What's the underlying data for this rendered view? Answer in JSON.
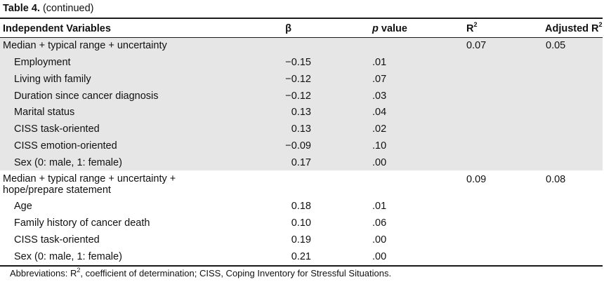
{
  "caption": {
    "label": "Table 4.",
    "text": "(continued)"
  },
  "header": {
    "independent_variables": "Independent Variables",
    "beta": "β",
    "p_value_italic": "p",
    "p_value_rest": " value",
    "r2_base": "R",
    "r2_sup": "2",
    "adjusted_base": "Adjusted R",
    "adjusted_sup": "2"
  },
  "group1": {
    "model": "Median + typical range + uncertainty",
    "r2": "0.07",
    "adjusted_r2": "0.05",
    "rows": [
      {
        "variable": "Employment",
        "beta": "−0.15",
        "p": ".01"
      },
      {
        "variable": "Living with family",
        "beta": "−0.12",
        "p": ".07"
      },
      {
        "variable": "Duration since cancer diagnosis",
        "beta": "−0.12",
        "p": ".03"
      },
      {
        "variable": "Marital status",
        "beta": "0.13",
        "p": ".04"
      },
      {
        "variable": "CISS task-oriented",
        "beta": "0.13",
        "p": ".02"
      },
      {
        "variable": "CISS emotion-oriented",
        "beta": "−0.09",
        "p": ".10"
      },
      {
        "variable": "Sex (0: male, 1: female)",
        "beta": "0.17",
        "p": ".00"
      }
    ]
  },
  "group2": {
    "model_line1": "Median + typical range + uncertainty +",
    "model_line2": "hope/prepare statement",
    "r2": "0.09",
    "adjusted_r2": "0.08",
    "rows": [
      {
        "variable": "Age",
        "beta": "0.18",
        "p": ".01"
      },
      {
        "variable": "Family history of cancer death",
        "beta": "0.10",
        "p": ".06"
      },
      {
        "variable": "CISS task-oriented",
        "beta": "0.19",
        "p": ".00"
      },
      {
        "variable": "Sex (0: male, 1: female)",
        "beta": "0.21",
        "p": ".00"
      }
    ]
  },
  "footnote": {
    "prefix": "Abbreviations: R",
    "sup": "2",
    "rest": ", coefficient of determination; CISS, Coping Inventory for Stressful Situations."
  }
}
